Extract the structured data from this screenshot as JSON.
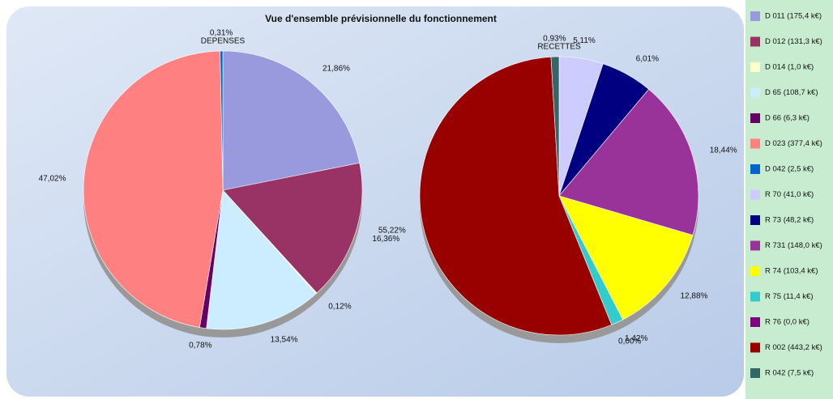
{
  "title": "Vue d'ensemble prévisionnelle du fonctionnement",
  "chart_data": [
    {
      "type": "pie",
      "title": "DEPENSES",
      "categories": [
        "D 011 (175,4 k€)",
        "D 012 (131,3 k€)",
        "D 014 (1,0 k€)",
        "D 65 (108,7 k€)",
        "D 66 (6,3 k€)",
        "D 023 (377,4 k€)",
        "D 042 (2,5 k€)"
      ],
      "values": [
        21.86,
        16.36,
        0.12,
        13.54,
        0.78,
        47.02,
        0.31
      ],
      "value_labels": [
        "21,86%",
        "16,36%",
        "0,12%",
        "13,54%",
        "0,78%",
        "47,02%",
        "0,31%"
      ],
      "colors": [
        "#9999dd",
        "#993366",
        "#ffffcc",
        "#ccecff",
        "#660066",
        "#ff8080",
        "#0066cc"
      ]
    },
    {
      "type": "pie",
      "title": "RECETTES",
      "categories": [
        "R 70 (41,0 k€)",
        "R 73 (48,2 k€)",
        "R 731 (148,0 k€)",
        "R 74 (103,4 k€)",
        "R 75 (11,4 k€)",
        "R 76 (0,0 k€)",
        "R 002 (443,2 k€)",
        "R 042 (7,5 k€)"
      ],
      "values": [
        5.11,
        6.01,
        18.44,
        12.88,
        1.42,
        0.0,
        55.22,
        0.93
      ],
      "value_labels": [
        "5,11%",
        "6,01%",
        "18,44%",
        "12,88%",
        "1,42%",
        "0,00%",
        "55,22%",
        "0,93%"
      ],
      "colors": [
        "#ccccff",
        "#000080",
        "#993399",
        "#ffff00",
        "#33cccc",
        "#800080",
        "#990000",
        "#336666"
      ]
    }
  ]
}
